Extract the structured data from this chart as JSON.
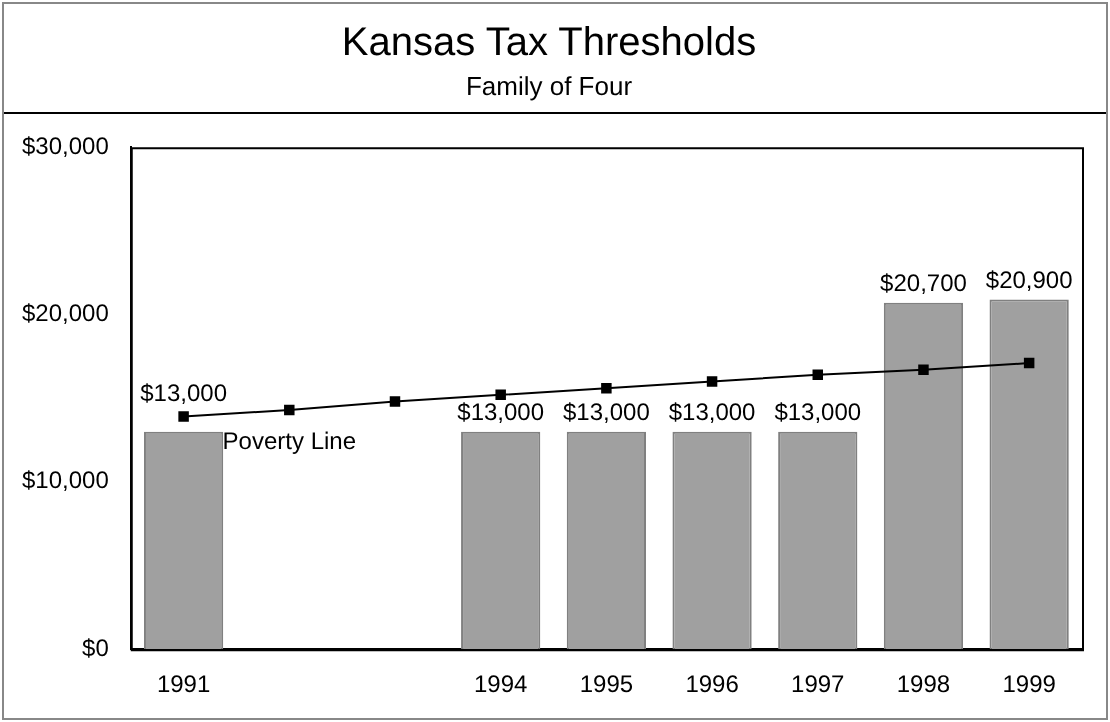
{
  "chart_data": {
    "type": "bar",
    "title": "Kansas Tax Thresholds",
    "subtitle": "Family of Four",
    "categories": [
      "1991",
      null,
      null,
      "1994",
      "1995",
      "1996",
      "1997",
      "1998",
      "1999"
    ],
    "series": [
      {
        "color": "#a0a0a0",
        "values": [
          13000,
          null,
          null,
          13000,
          13000,
          13000,
          13000,
          20700,
          20900
        ],
        "value_labels": [
          "$13,000",
          null,
          null,
          "$13,000",
          "$13,000",
          "$13,000",
          "$13,000",
          "$20,700",
          "$20,900"
        ]
      },
      {
        "type": "line",
        "name": "Poverty Line",
        "color": "#000000",
        "marker": "square",
        "values": [
          13900,
          14300,
          14800,
          15200,
          15600,
          16000,
          16400,
          16700,
          17100
        ]
      }
    ],
    "ylim": [
      0,
      30000
    ],
    "yticks": [
      {
        "value": 0,
        "label": "$0"
      },
      {
        "value": 10000,
        "label": "$10,000"
      },
      {
        "value": 20000,
        "label": "$20,000"
      },
      {
        "value": 30000,
        "label": "$30,000"
      }
    ],
    "grid": false,
    "legend": false
  }
}
